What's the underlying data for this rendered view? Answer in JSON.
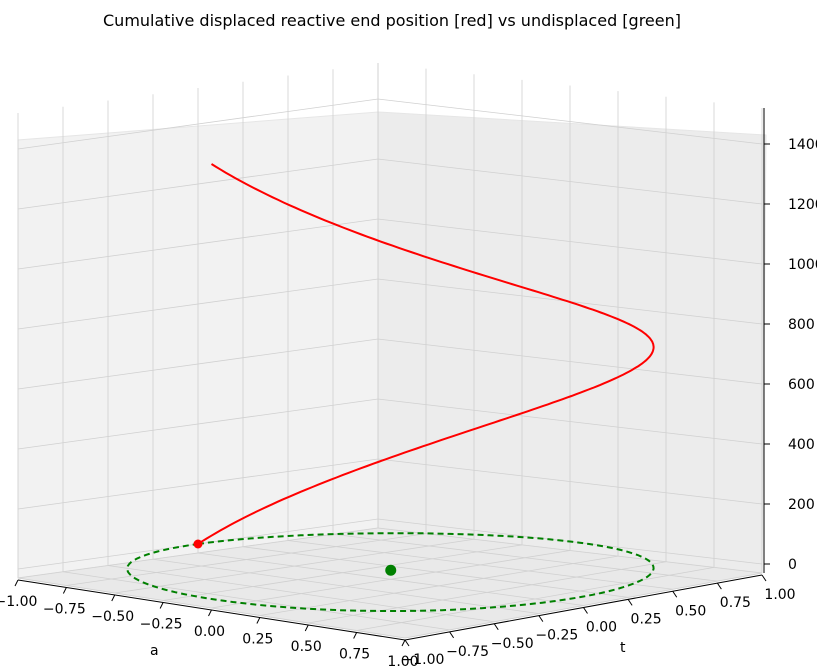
{
  "chart_data": {
    "type": "line3d",
    "title": "Cumulative displaced reactive end position [red] vs undisplaced [green]",
    "xlabel": "a",
    "ylabel": "t",
    "zlabel": "",
    "xlim": [
      -1.0,
      1.0
    ],
    "ylim": [
      -1.0,
      1.0
    ],
    "zlim": [
      0,
      1500
    ],
    "xticks": [
      "−1.00",
      "−0.75",
      "−0.50",
      "−0.25",
      "0.00",
      "0.25",
      "0.50",
      "0.75",
      "1.00"
    ],
    "yticks": [
      "−1.00",
      "−0.75",
      "−0.50",
      "−0.25",
      "0.00",
      "0.25",
      "0.50",
      "0.75",
      "1.00"
    ],
    "zticks": [
      "0",
      "200",
      "400",
      "600",
      "800",
      "1000",
      "1200",
      "1400"
    ],
    "grid": true,
    "series": [
      {
        "description": "displaced helix",
        "color": "#ff0000",
        "style": "solid",
        "points": [
          [
            -1.0,
            0.0,
            0
          ],
          [
            -0.95,
            0.31,
            100
          ],
          [
            -0.81,
            0.59,
            200
          ],
          [
            -0.59,
            0.81,
            300
          ],
          [
            -0.31,
            0.95,
            400
          ],
          [
            0.0,
            1.0,
            500
          ],
          [
            0.31,
            0.95,
            600
          ],
          [
            0.59,
            0.81,
            700
          ],
          [
            0.81,
            0.59,
            800
          ],
          [
            0.95,
            0.31,
            900
          ],
          [
            1.0,
            0.0,
            1000
          ],
          [
            0.95,
            -0.31,
            1100
          ],
          [
            0.81,
            -0.59,
            1200
          ],
          [
            0.59,
            -0.81,
            1300
          ],
          [
            0.31,
            -0.95,
            1400
          ],
          [
            0.0,
            -1.0,
            1450
          ]
        ]
      },
      {
        "description": "undisplaced circle",
        "color": "#008000",
        "style": "dashed",
        "points": [
          [
            -1.0,
            0.0,
            0
          ],
          [
            0.0,
            1.0,
            0
          ],
          [
            1.0,
            0.0,
            0
          ],
          [
            0.0,
            -1.0,
            0
          ],
          [
            -1.0,
            0.0,
            0
          ]
        ]
      }
    ],
    "markers": [
      {
        "description": "displaced start",
        "color": "#ff0000",
        "point": [
          -1.0,
          0.0,
          0
        ]
      },
      {
        "description": "undisplaced centre",
        "color": "#008000",
        "point": [
          0.0,
          0.0,
          0
        ]
      }
    ]
  }
}
